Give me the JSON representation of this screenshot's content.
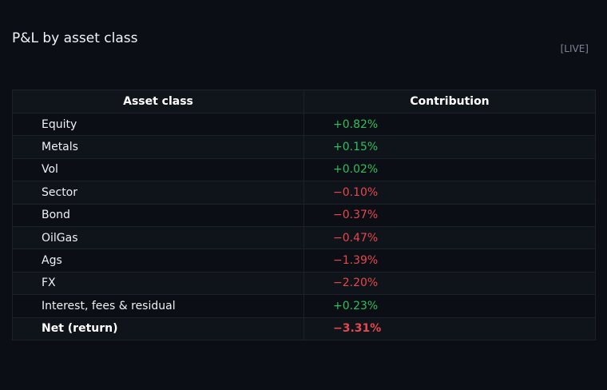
{
  "title": "P&L by asset class",
  "badge": "[LIVE]",
  "colors": {
    "background": "#0b0e14",
    "positive": "#2fbf5b",
    "negative": "#e5484d",
    "border": "#1c212b"
  },
  "table": {
    "headers": [
      "Asset class",
      "Contribution"
    ],
    "rows": [
      {
        "label": "Equity",
        "value": "+0.82%"
      },
      {
        "label": "Metals",
        "value": "+0.15%"
      },
      {
        "label": "Vol",
        "value": "+0.02%"
      },
      {
        "label": "Sector",
        "value": "−0.10%"
      },
      {
        "label": "Bond",
        "value": "−0.37%"
      },
      {
        "label": "OilGas",
        "value": "−0.47%"
      },
      {
        "label": "Ags",
        "value": "−1.39%"
      },
      {
        "label": "FX",
        "value": "−2.20%"
      },
      {
        "label": "Interest, fees & residual",
        "value": "+0.23%"
      }
    ],
    "total": {
      "label": "Net (return)",
      "value": "−3.31%"
    }
  },
  "chart_data": {
    "type": "table",
    "title": "P&L by asset class",
    "columns": [
      "Asset class",
      "Contribution"
    ],
    "rows": [
      [
        "Equity",
        0.82
      ],
      [
        "Metals",
        0.15
      ],
      [
        "Vol",
        0.02
      ],
      [
        "Sector",
        -0.1
      ],
      [
        "Bond",
        -0.37
      ],
      [
        "OilGas",
        -0.47
      ],
      [
        "Ags",
        -1.39
      ],
      [
        "FX",
        -2.2
      ],
      [
        "Interest, fees & residual",
        0.23
      ],
      [
        "Net (return)",
        -3.31
      ]
    ],
    "unit": "%"
  }
}
